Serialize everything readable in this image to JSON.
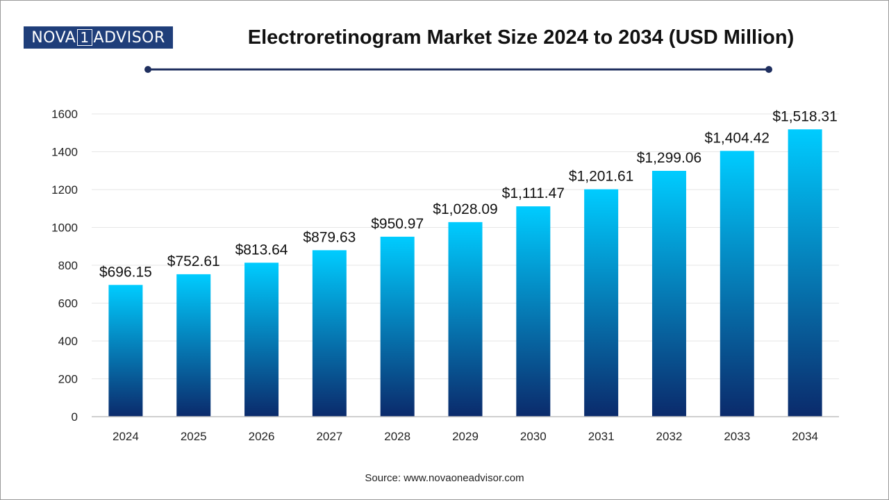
{
  "brand": {
    "logo_left": "NOVA",
    "logo_mid": "1",
    "logo_right": "ADVISOR"
  },
  "header": {
    "title": "Electroretinogram Market Size 2024 to 2034 (USD Million)"
  },
  "footer": {
    "source": "Source: www.novaoneadvisor.com"
  },
  "colors": {
    "bar_top": "#00CCFF",
    "bar_bottom": "#0B2A6B",
    "rule": "#1F2F5F",
    "logo_bg": "#1F3E7A"
  },
  "chart_data": {
    "type": "bar",
    "title": "Electroretinogram Market Size 2024 to 2034 (USD Million)",
    "xlabel": "",
    "ylabel": "",
    "categories": [
      "2024",
      "2025",
      "2026",
      "2027",
      "2028",
      "2029",
      "2030",
      "2031",
      "2032",
      "2033",
      "2034"
    ],
    "values": [
      696.15,
      752.61,
      813.64,
      879.63,
      950.97,
      1028.09,
      1111.47,
      1201.61,
      1299.06,
      1404.42,
      1518.31
    ],
    "value_labels": [
      "$696.15",
      "$752.61",
      "$813.64",
      "$879.63",
      "$950.97",
      "$1,028.09",
      "$1,111.47",
      "$1,201.61",
      "$1,299.06",
      "$1,404.42",
      "$1,518.31"
    ],
    "ylim": [
      0,
      1600
    ],
    "yticks": [
      0,
      200,
      400,
      600,
      800,
      1000,
      1200,
      1400,
      1600
    ],
    "grid": true,
    "legend": "none"
  }
}
